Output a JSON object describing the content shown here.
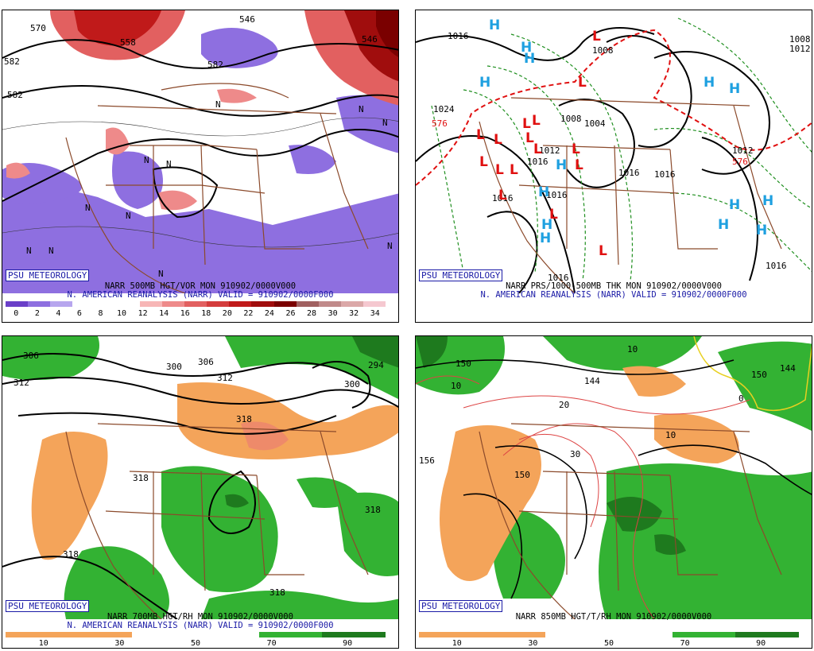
{
  "panels": [
    {
      "badge": "PSU METEOROLOGY",
      "caption_line1": "NARR 500MB HGT/VOR MON 910902/0000V000",
      "caption_line2": "N. AMERICAN REANALYSIS (NARR) VALID = 910902/0000F000",
      "colorbar": {
        "colors": [
          "#6a3fc8",
          "#8e6fe0",
          "#b7a6ee",
          "#ffffff",
          "#ffffff",
          "#ffffff",
          "#f7b6b6",
          "#ee8a8a",
          "#e26060",
          "#d43c3c",
          "#c01a1a",
          "#a00d0d",
          "#7a0000",
          "#a06060",
          "#c08a8a",
          "#dba8a8",
          "#f5c8d0"
        ],
        "ticks": [
          "0",
          "2",
          "4",
          "6",
          "8",
          "10",
          "12",
          "14",
          "16",
          "18",
          "20",
          "22",
          "24",
          "26",
          "28",
          "30",
          "32",
          "34"
        ]
      },
      "contour_labels": [
        "570",
        "558",
        "582",
        "582",
        "546",
        "546",
        "582"
      ],
      "symbols": [
        "N",
        "N",
        "N",
        "N",
        "N",
        "N",
        "N",
        "N",
        "N",
        "N",
        "N"
      ]
    },
    {
      "badge": "PSU METEOROLOGY",
      "caption_line1": "NARR PRS/1000-500MB THK MON 910902/0000V000",
      "caption_line2": "N. AMERICAN REANALYSIS (NARR) VALID = 910902/0000F000",
      "contour_labels": [
        "1016",
        "1008",
        "1024",
        "1012",
        "1008",
        "1004",
        "1016",
        "1016",
        "1012",
        "1016",
        "1016",
        "1016",
        "1016",
        "1008",
        "1012",
        "1016",
        "576",
        "576"
      ],
      "symbols_H": [
        "H",
        "H",
        "H",
        "H",
        "H",
        "H",
        "H",
        "H",
        "H",
        "H",
        "H",
        "H",
        "H",
        "H"
      ],
      "symbols_L": [
        "L",
        "L",
        "L",
        "L",
        "L",
        "L",
        "L",
        "L",
        "L",
        "L",
        "L",
        "L",
        "L",
        "L",
        "L",
        "L"
      ]
    },
    {
      "badge": "PSU METEOROLOGY",
      "caption_line1": "NARR 700MB HGT/RH MON 910902/0000V000",
      "caption_line2": "N. AMERICAN REANALYSIS (NARR) VALID = 910902/0000F000",
      "colorbar": {
        "colors": [
          "#f4a45a",
          "#f4a45a",
          "#ffffff",
          "#ffffff",
          "#33b233",
          "#1e7a1e"
        ],
        "ticks": [
          "10",
          "30",
          "50",
          "70",
          "90"
        ]
      },
      "contour_labels": [
        "306",
        "312",
        "306",
        "300",
        "312",
        "318",
        "294",
        "300",
        "318",
        "318",
        "318",
        "318"
      ]
    },
    {
      "badge": "PSU METEOROLOGY",
      "caption_line1": "NARR 850MB HGT/T/RH MON 910902/0000V000",
      "caption_line2": "",
      "colorbar": {
        "colors": [
          "#f4a45a",
          "#f4a45a",
          "#ffffff",
          "#ffffff",
          "#33b233",
          "#1e7a1e"
        ],
        "ticks": [
          "10",
          "30",
          "50",
          "70",
          "90"
        ]
      },
      "contour_labels": [
        "150",
        "144",
        "10",
        "20",
        "30",
        "10",
        "156",
        "150",
        "150",
        "144",
        "10",
        "0"
      ]
    }
  ]
}
